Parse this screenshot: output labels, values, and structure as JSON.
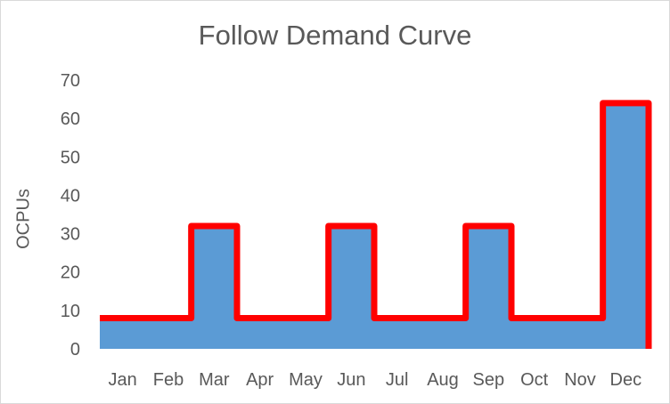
{
  "chart_data": {
    "type": "area",
    "title": "Follow Demand Curve",
    "xlabel": "",
    "ylabel": "OCPUs",
    "categories": [
      "Jan",
      "Feb",
      "Mar",
      "Apr",
      "May",
      "Jun",
      "Jul",
      "Aug",
      "Sep",
      "Oct",
      "Nov",
      "Dec"
    ],
    "series": [
      {
        "values": [
          8,
          8,
          32,
          8,
          8,
          32,
          8,
          8,
          32,
          8,
          8,
          64
        ]
      }
    ],
    "y_ticks": [
      0,
      10,
      20,
      30,
      40,
      50,
      60,
      70
    ],
    "ylim": [
      0,
      70
    ],
    "grid": false,
    "step": true,
    "colors": {
      "fill": "#5b9bd5",
      "outline": "#ff0000"
    }
  }
}
